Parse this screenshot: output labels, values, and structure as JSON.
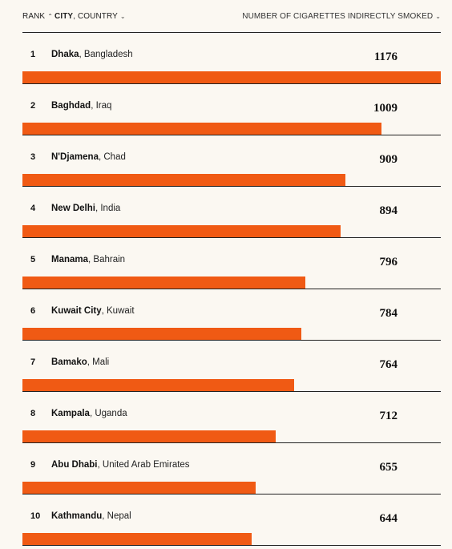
{
  "header": {
    "rank_label": "RANK",
    "city_label": "CITY",
    "country_label": ", COUNTRY",
    "metric_label": "NUMBER OF CIGARETTES INDIRECTLY SMOKED"
  },
  "colors": {
    "bar": "#f05a14",
    "background": "#fbf8f2",
    "rule": "#222222"
  },
  "chart_data": {
    "type": "bar",
    "orientation": "horizontal",
    "categories": [
      "Dhaka",
      "Baghdad",
      "N'Djamena",
      "New Delhi",
      "Manama",
      "Kuwait City",
      "Bamako",
      "Kampala",
      "Abu Dhabi",
      "Kathmandu"
    ],
    "values": [
      1176,
      1009,
      909,
      894,
      796,
      784,
      764,
      712,
      655,
      644
    ],
    "xlim": [
      0,
      1176
    ],
    "rows": [
      {
        "rank": "1",
        "city": "Dhaka",
        "country": ", Bangladesh",
        "value": 1176
      },
      {
        "rank": "2",
        "city": "Baghdad",
        "country": ", Iraq",
        "value": 1009
      },
      {
        "rank": "3",
        "city": "N'Djamena",
        "country": ", Chad",
        "value": 909
      },
      {
        "rank": "4",
        "city": "New Delhi",
        "country": ", India",
        "value": 894
      },
      {
        "rank": "5",
        "city": "Manama",
        "country": ", Bahrain",
        "value": 796
      },
      {
        "rank": "6",
        "city": "Kuwait City",
        "country": ", Kuwait",
        "value": 784
      },
      {
        "rank": "7",
        "city": "Bamako",
        "country": ", Mali",
        "value": 764
      },
      {
        "rank": "8",
        "city": "Kampala",
        "country": ", Uganda",
        "value": 712
      },
      {
        "rank": "9",
        "city": "Abu Dhabi",
        "country": ", United Arab Emirates",
        "value": 655
      },
      {
        "rank": "10",
        "city": "Kathmandu",
        "country": ", Nepal",
        "value": 644
      }
    ]
  }
}
